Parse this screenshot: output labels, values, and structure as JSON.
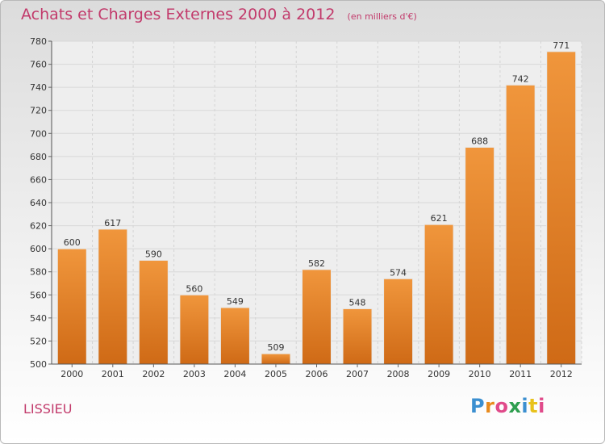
{
  "header": {
    "title": "Achats et Charges Externes 2000 à 2012",
    "unit": "(en milliers d'€)"
  },
  "footer": {
    "commune": "LISSIEU",
    "logo_letters": [
      "P",
      "r",
      "o",
      "x",
      "i",
      "t",
      "i"
    ],
    "logo_colors": [
      "#3b8fd0",
      "#e88a1c",
      "#e04a8a",
      "#2e9e4f",
      "#3b8fd0",
      "#e8c21c",
      "#e04a8a"
    ]
  },
  "chart_data": {
    "type": "bar",
    "title": "Achats et Charges Externes 2000 à 2012",
    "subtitle": "(en milliers d'€)",
    "xlabel": "",
    "ylabel": "",
    "categories": [
      "2000",
      "2001",
      "2002",
      "2003",
      "2004",
      "2005",
      "2006",
      "2007",
      "2008",
      "2009",
      "2010",
      "2011",
      "2012"
    ],
    "values": [
      600,
      617,
      590,
      560,
      549,
      509,
      582,
      548,
      574,
      621,
      688,
      742,
      771
    ],
    "ylim": [
      500,
      780
    ],
    "yticks": [
      500,
      520,
      540,
      560,
      580,
      600,
      620,
      640,
      660,
      680,
      700,
      720,
      740,
      760,
      780
    ],
    "grid": true,
    "bar_color": "#f0963c",
    "bar_color_dark": "#cf6a16"
  }
}
